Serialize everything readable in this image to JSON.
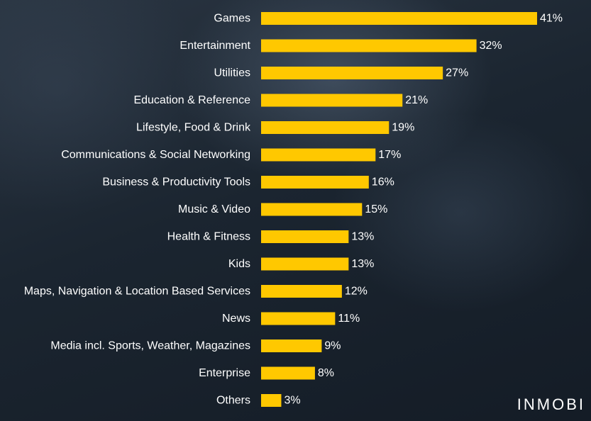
{
  "brand": {
    "logo_text": "INMOBI"
  },
  "colors": {
    "bar": "#FFC800",
    "label": "#FFFFFF"
  },
  "chart_data": {
    "type": "bar",
    "orientation": "horizontal",
    "categories": [
      "Games",
      "Entertainment",
      "Utilities",
      "Education & Reference",
      "Lifestyle, Food & Drink",
      "Communications & Social Networking",
      "Business & Productivity Tools",
      "Music & Video",
      "Health & Fitness",
      "Kids",
      "Maps, Navigation & Location Based Services",
      "News",
      "Media incl. Sports, Weather, Magazines",
      "Enterprise",
      "Others"
    ],
    "values": [
      41,
      32,
      27,
      21,
      19,
      17,
      16,
      15,
      13,
      13,
      12,
      11,
      9,
      8,
      3
    ],
    "value_labels": [
      "41%",
      "32%",
      "27%",
      "21%",
      "19%",
      "17%",
      "16%",
      "15%",
      "13%",
      "13%",
      "12%",
      "11%",
      "9%",
      "8%",
      "3%"
    ],
    "value_unit": "%",
    "xlim": [
      0,
      41
    ],
    "grid": false,
    "legend": "none"
  }
}
